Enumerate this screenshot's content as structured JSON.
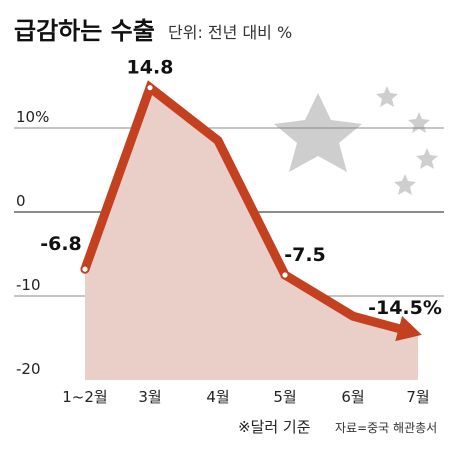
{
  "chart_data": {
    "type": "line",
    "title": "급감하는 수출",
    "subtitle": "단위: 전년 대비 %",
    "categories": [
      "1~2월",
      "3월",
      "4월",
      "5월",
      "6월",
      "7월"
    ],
    "series": [
      {
        "values": [
          -6.8,
          14.8,
          8.5,
          -7.5,
          -12.4,
          -14.5
        ]
      }
    ],
    "data_labels": [
      {
        "index": 0,
        "text": "-6.8"
      },
      {
        "index": 1,
        "text": "14.8"
      },
      {
        "index": 3,
        "text": "-7.5"
      },
      {
        "index": 5,
        "text": "-14.5%"
      }
    ],
    "y_ticks": [
      {
        "value": 10,
        "label": "10%"
      },
      {
        "value": 0,
        "label": "0"
      },
      {
        "value": -10,
        "label": "-10"
      },
      {
        "value": -20,
        "label": "-20"
      }
    ],
    "ylim": [
      -20,
      15
    ],
    "grid": true,
    "colors": {
      "line": "#c4401f",
      "area": "#e9cfc8",
      "grid": "#888888",
      "star": "#bdbdbd",
      "text": "#222222"
    },
    "note": "※달러 기준",
    "source": "자료=중국 해관총서"
  }
}
